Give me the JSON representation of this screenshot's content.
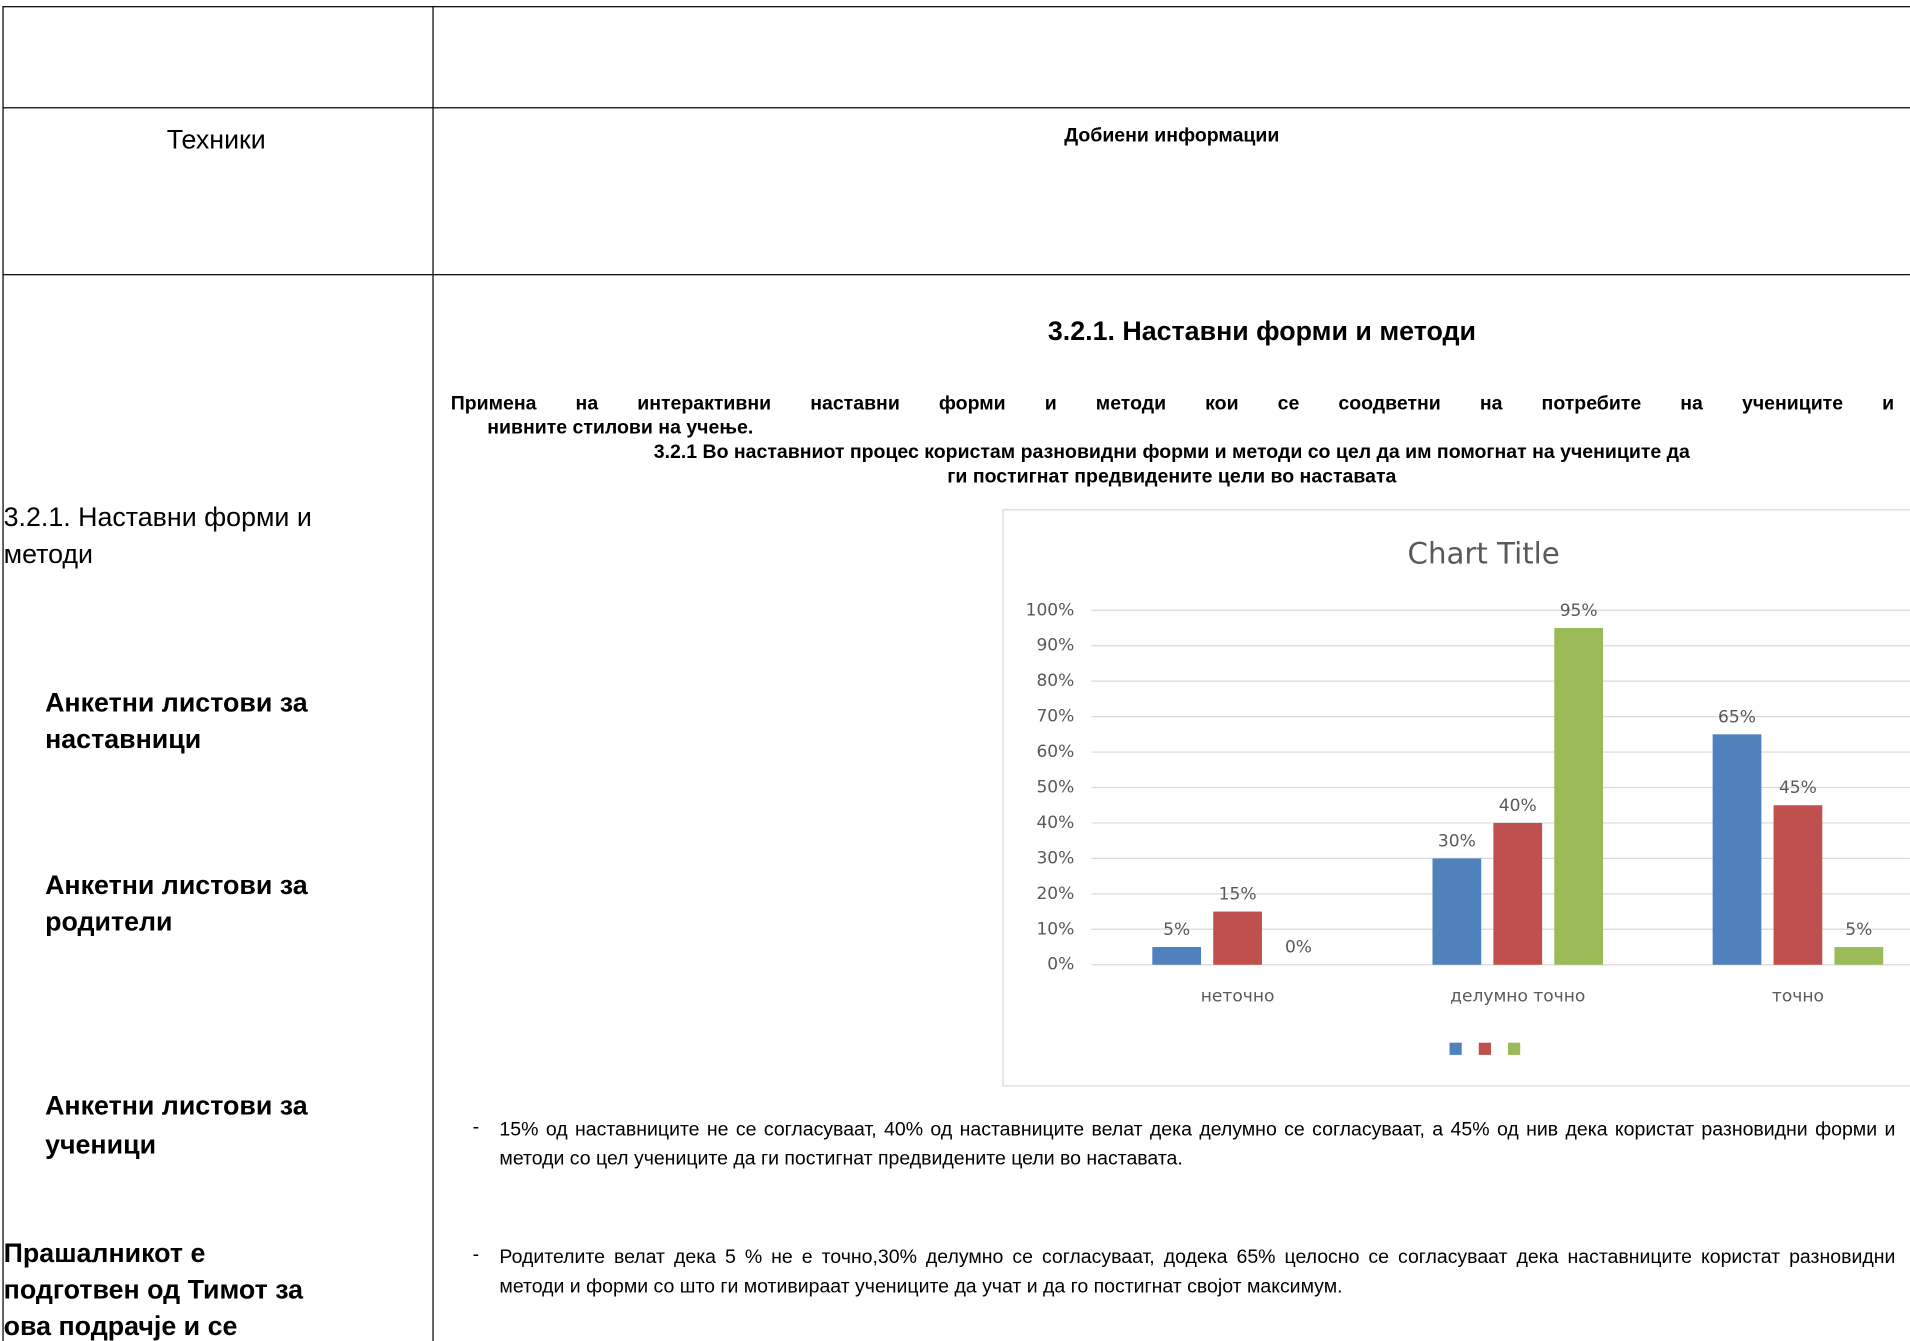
{
  "header": {
    "left": "Техники",
    "right": "Добиени информации"
  },
  "left": {
    "items": [
      {
        "lines": [
          "3.2.1.  Наставни форми и",
          "методи"
        ]
      },
      {
        "lines": [
          "Анкетни листови  за",
          "наставници"
        ]
      },
      {
        "lines": [
          "Анкетни листови за",
          "родители"
        ]
      },
      {
        "lines": [
          "Анкетни листови за",
          "ученици"
        ]
      },
      {
        "lines": [
          "Прашалникот е",
          "подготвен од Тимот за",
          "ова подрачје и се"
        ]
      }
    ]
  },
  "content": {
    "heading": "3.2.1.  Наставни форми и методи",
    "intro": [
      "Примена на интерактивни наставни форми и методи кои се соодветни на потребите на учениците и",
      "нивните стилови на учење."
    ],
    "question": [
      "3.2.1 Во наставниот процес користам разновидни форми и методи со цел да им помогнат на учениците да",
      "ги постигнат предвидените цели во наставата"
    ],
    "bullets": [
      {
        "marker": "-",
        "text": "15% од наставниците не се согласуваат, 40% од наставниците велат дека делумно се согласуваат, а 45% од нив дека користат разновидни форми и методи со цел учениците да ги постигнат предвидените цели во наставата."
      },
      {
        "marker": "-",
        "text": "Родителите велат дека 5 % не е точно,30% делумно се согласуваат, додека 65% целосно се согласуваат дека наставниците користат разновидни методи и форми со што ги мотивираат учениците да учат и да го постигнат својот максимум."
      }
    ]
  },
  "chart_data": {
    "type": "bar",
    "title": "Chart Title",
    "categories": [
      "неточно",
      "делумно точно",
      "точно"
    ],
    "series": [
      {
        "color": "#4f81bd",
        "values": [
          5,
          30,
          65
        ],
        "value_labels": [
          "5%",
          "30%",
          "65%"
        ]
      },
      {
        "color": "#c0504d",
        "values": [
          15,
          40,
          45
        ],
        "value_labels": [
          "15%",
          "40%",
          "45%"
        ]
      },
      {
        "color": "#9bbb59",
        "values": [
          0,
          95,
          5
        ],
        "value_labels": [
          "0%",
          "95%",
          "5%"
        ]
      }
    ],
    "ylim": [
      0,
      100
    ],
    "yticks": [
      {
        "value": 0,
        "label": "0%"
      },
      {
        "value": 10,
        "label": "10%"
      },
      {
        "value": 20,
        "label": "20%"
      },
      {
        "value": 30,
        "label": "30%"
      },
      {
        "value": 40,
        "label": "40%"
      },
      {
        "value": 50,
        "label": "50%"
      },
      {
        "value": 60,
        "label": "60%"
      },
      {
        "value": 70,
        "label": "70%"
      },
      {
        "value": 80,
        "label": "80%"
      },
      {
        "value": 90,
        "label": "90%"
      },
      {
        "value": 100,
        "label": "100%"
      }
    ],
    "grid": true,
    "legend": "bottom"
  }
}
